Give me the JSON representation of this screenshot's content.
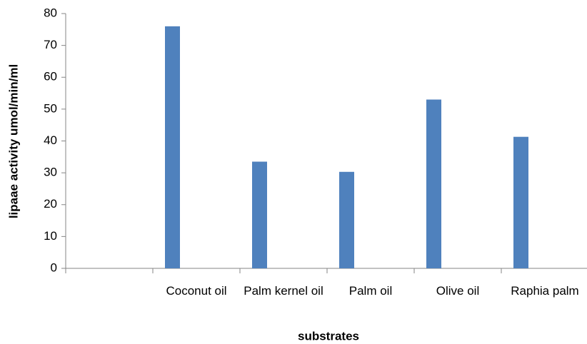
{
  "chart_data": {
    "type": "bar",
    "x_label": "substrates",
    "y_label": "lipaae activity umol/min/ml",
    "categories": [
      null,
      "Coconut oil",
      "Palm kernel oil",
      "Palm oil",
      "Olive oil",
      "Raphia palm"
    ],
    "values": [
      null,
      76,
      33.5,
      30.3,
      53,
      41.3
    ],
    "color": "#4f81bd",
    "ylim": [
      0,
      80
    ],
    "yticks": [
      0,
      10,
      20,
      30,
      40,
      50,
      60,
      70,
      80
    ],
    "grid": false
  }
}
